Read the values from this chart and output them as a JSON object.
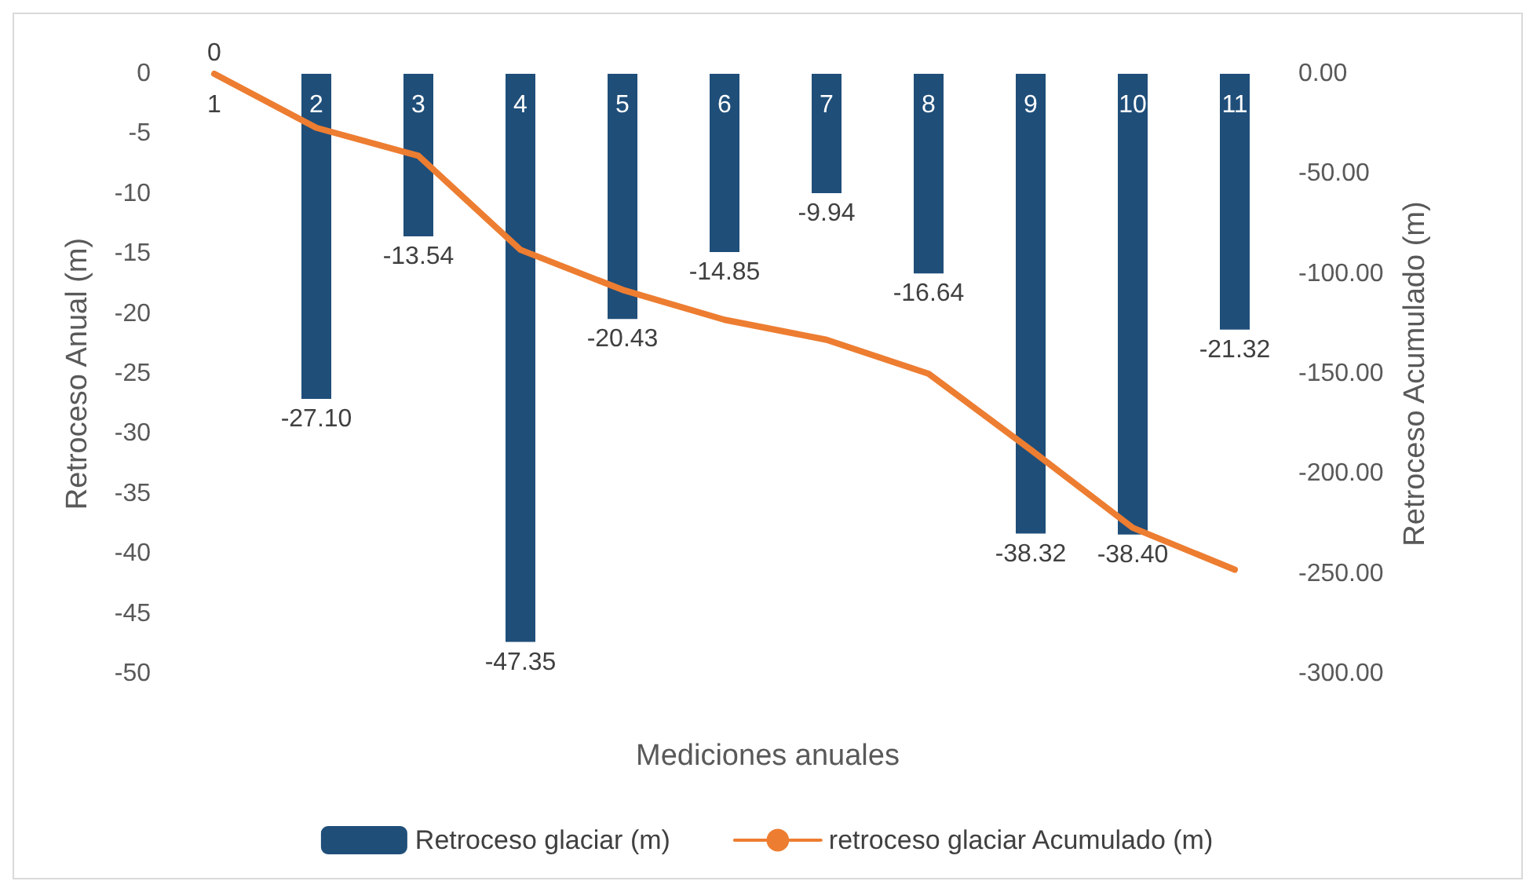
{
  "chart_data": {
    "type": "bar",
    "xlabel": "Mediciones anuales",
    "ylabel": "Retroceso Anual (m)",
    "y2label": "Retroceso Acumulado (m)",
    "categories": [
      "1",
      "2",
      "3",
      "4",
      "5",
      "6",
      "7",
      "8",
      "9",
      "10",
      "11"
    ],
    "series": [
      {
        "name": "Retroceso glaciar (m)",
        "color": "#1f4e79",
        "values": [
          0,
          -27.1,
          -13.54,
          -47.35,
          -20.43,
          -14.85,
          -9.94,
          -16.64,
          -38.32,
          -38.4,
          -21.32
        ],
        "value_labels": [
          "0",
          "-27.10",
          "-13.54",
          "-47.35",
          "-20.43",
          "-14.85",
          "-9.94",
          "-16.64",
          "-38.32",
          "-38.40",
          "-21.32"
        ]
      },
      {
        "name": "retroceso glaciar Acumulado (m)",
        "type": "line",
        "axis": "y2",
        "color": "#ed7d31",
        "values": [
          0,
          -27,
          -41,
          -88,
          -108,
          -123,
          -133,
          -150,
          -188,
          -227,
          -248
        ]
      }
    ],
    "ylim": [
      -50,
      0
    ],
    "yticks": [
      -50,
      -45,
      -40,
      -35,
      -30,
      -25,
      -20,
      -15,
      -10,
      -5,
      0
    ],
    "y2lim": [
      -300,
      0
    ],
    "y2ticks": [
      {
        "value": -300,
        "label": "-300.00"
      },
      {
        "value": -250,
        "label": "-250.00"
      },
      {
        "value": -200,
        "label": "-200.00"
      },
      {
        "value": -150,
        "label": "-150.00"
      },
      {
        "value": -100,
        "label": "-100.00"
      },
      {
        "value": -50,
        "label": "-50.00"
      },
      {
        "value": 0,
        "label": "0.00"
      }
    ],
    "legend": "bottom",
    "grid": false,
    "marker": "none",
    "line_style": "solid"
  }
}
